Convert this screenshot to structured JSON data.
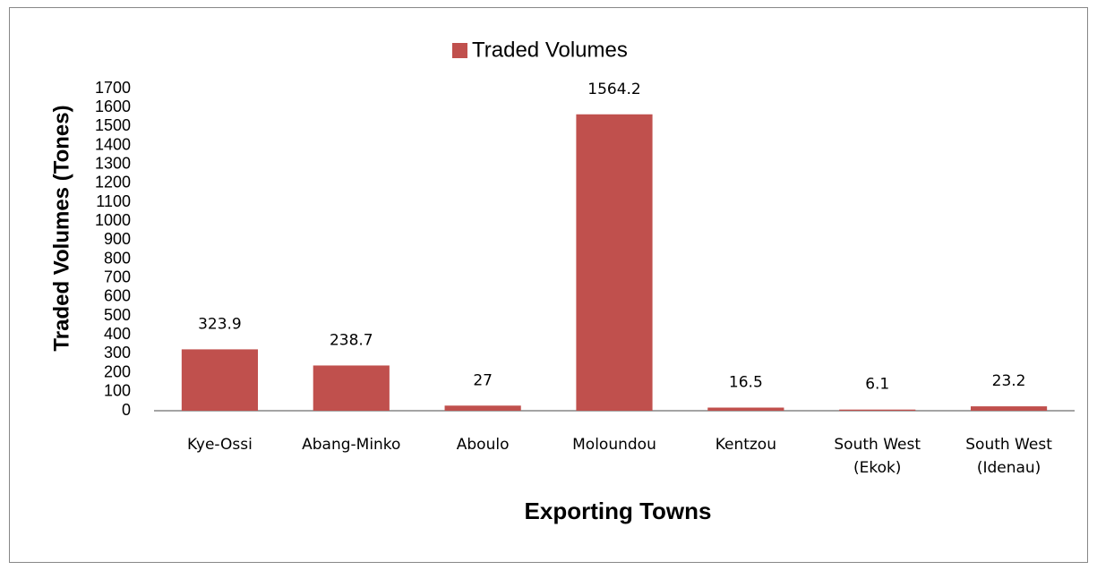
{
  "chart_data": {
    "type": "bar",
    "categories": [
      "Kye-Ossi",
      "Abang-Minko",
      "Aboulo",
      "Moloundou",
      "Kentzou",
      "South West (Ekok)",
      "South West (Idenau)"
    ],
    "series": [
      {
        "name": "Traded Volumes",
        "color": "#c0504d",
        "values": [
          323.9,
          238.7,
          27,
          1564.2,
          16.5,
          6.1,
          23.2
        ]
      }
    ],
    "x_label": "Exporting Towns",
    "y_label": "Traded Volumes (Tones)",
    "ylim": [
      0,
      1700
    ],
    "yticks": [
      0,
      100,
      200,
      300,
      400,
      500,
      600,
      700,
      800,
      900,
      1000,
      1100,
      1200,
      1300,
      1400,
      1500,
      1600,
      1700
    ],
    "legend": "top",
    "grid": false
  }
}
